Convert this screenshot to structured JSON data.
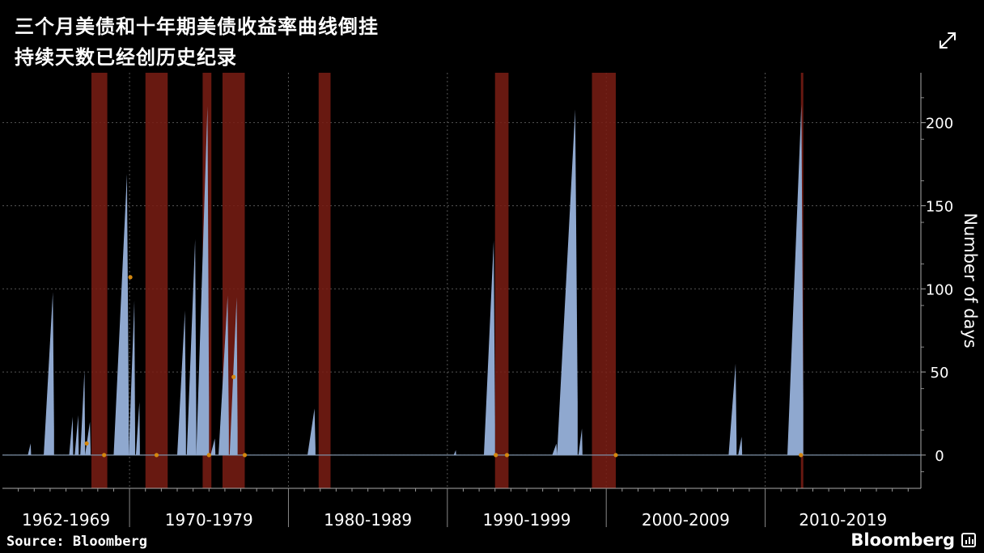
{
  "title": {
    "line1": "三个月美债和十年期美债收益率曲线倒挂",
    "line2": "持续天数已经创历史纪录"
  },
  "expand_icon": "expand-arrows-icon",
  "source": "Source: Bloomberg",
  "brand": "Bloomberg",
  "colors": {
    "background": "#000000",
    "area": "#8fa8cf",
    "recession": "#7a1d14",
    "marker": "#d4870f",
    "grid": "#555555",
    "axis_text": "#ffffff"
  },
  "chart_data": {
    "type": "area",
    "ylabel": "Number of days",
    "ylim": [
      -20,
      230
    ],
    "yticks": [
      0,
      50,
      100,
      150,
      200
    ],
    "grid": true,
    "decade_labels": [
      "1962-1969",
      "1970-1979",
      "1980-1989",
      "1990-1999",
      "2000-2009",
      "2010-2019"
    ],
    "xlim": [
      1962,
      2019.8
    ],
    "inversion_spikes": [
      {
        "start": 1963.6,
        "end": 1963.8,
        "peak": 7
      },
      {
        "start": 1964.6,
        "end": 1965.25,
        "peak": 98
      },
      {
        "start": 1966.2,
        "end": 1966.45,
        "peak": 23
      },
      {
        "start": 1966.55,
        "end": 1966.8,
        "peak": 24
      },
      {
        "start": 1966.9,
        "end": 1967.2,
        "peak": 51
      },
      {
        "start": 1967.2,
        "end": 1967.55,
        "peak": 20
      },
      {
        "start": 1969.0,
        "end": 1969.95,
        "peak": 169
      },
      {
        "start": 1969.95,
        "end": 1970.35,
        "peak": 93
      },
      {
        "start": 1970.4,
        "end": 1970.65,
        "peak": 32
      },
      {
        "start": 1973.0,
        "end": 1973.55,
        "peak": 87
      },
      {
        "start": 1973.6,
        "end": 1974.2,
        "peak": 130
      },
      {
        "start": 1974.2,
        "end": 1975.0,
        "peak": 210
      },
      {
        "start": 1975.1,
        "end": 1975.4,
        "peak": 10
      },
      {
        "start": 1975.6,
        "end": 1976.25,
        "peak": 96
      },
      {
        "start": 1976.3,
        "end": 1976.8,
        "peak": 95
      },
      {
        "start": 1981.2,
        "end": 1981.7,
        "peak": 28
      },
      {
        "start": 1990.4,
        "end": 1990.55,
        "peak": 3
      },
      {
        "start": 1992.3,
        "end": 1993.0,
        "peak": 129
      },
      {
        "start": 1996.6,
        "end": 1996.9,
        "peak": 7
      },
      {
        "start": 1996.9,
        "end": 1998.2,
        "peak": 208
      },
      {
        "start": 1998.25,
        "end": 1998.5,
        "peak": 16
      },
      {
        "start": 2007.7,
        "end": 2008.2,
        "peak": 55
      },
      {
        "start": 2008.3,
        "end": 2008.55,
        "peak": 11
      },
      {
        "start": 2011.4,
        "end": 2012.4,
        "peak": 211
      }
    ],
    "recession_bands": [
      {
        "start": 1967.6,
        "end": 1968.6
      },
      {
        "start": 1971.0,
        "end": 1972.4
      },
      {
        "start": 1974.6,
        "end": 1975.15
      },
      {
        "start": 1975.85,
        "end": 1977.25
      },
      {
        "start": 1981.9,
        "end": 1982.65
      },
      {
        "start": 1993.0,
        "end": 1993.85
      },
      {
        "start": 1999.1,
        "end": 2000.6
      },
      {
        "start": 2012.25,
        "end": 2012.4
      }
    ],
    "markers": [
      {
        "x": 1967.3,
        "y": 7
      },
      {
        "x": 1968.4,
        "y": 0
      },
      {
        "x": 1970.05,
        "y": 107
      },
      {
        "x": 1971.7,
        "y": 0
      },
      {
        "x": 1975.0,
        "y": 0
      },
      {
        "x": 1976.55,
        "y": 47
      },
      {
        "x": 1977.25,
        "y": 0
      },
      {
        "x": 1993.05,
        "y": 0
      },
      {
        "x": 1993.75,
        "y": 0
      },
      {
        "x": 2000.6,
        "y": 0
      },
      {
        "x": 2012.25,
        "y": 0
      }
    ]
  }
}
